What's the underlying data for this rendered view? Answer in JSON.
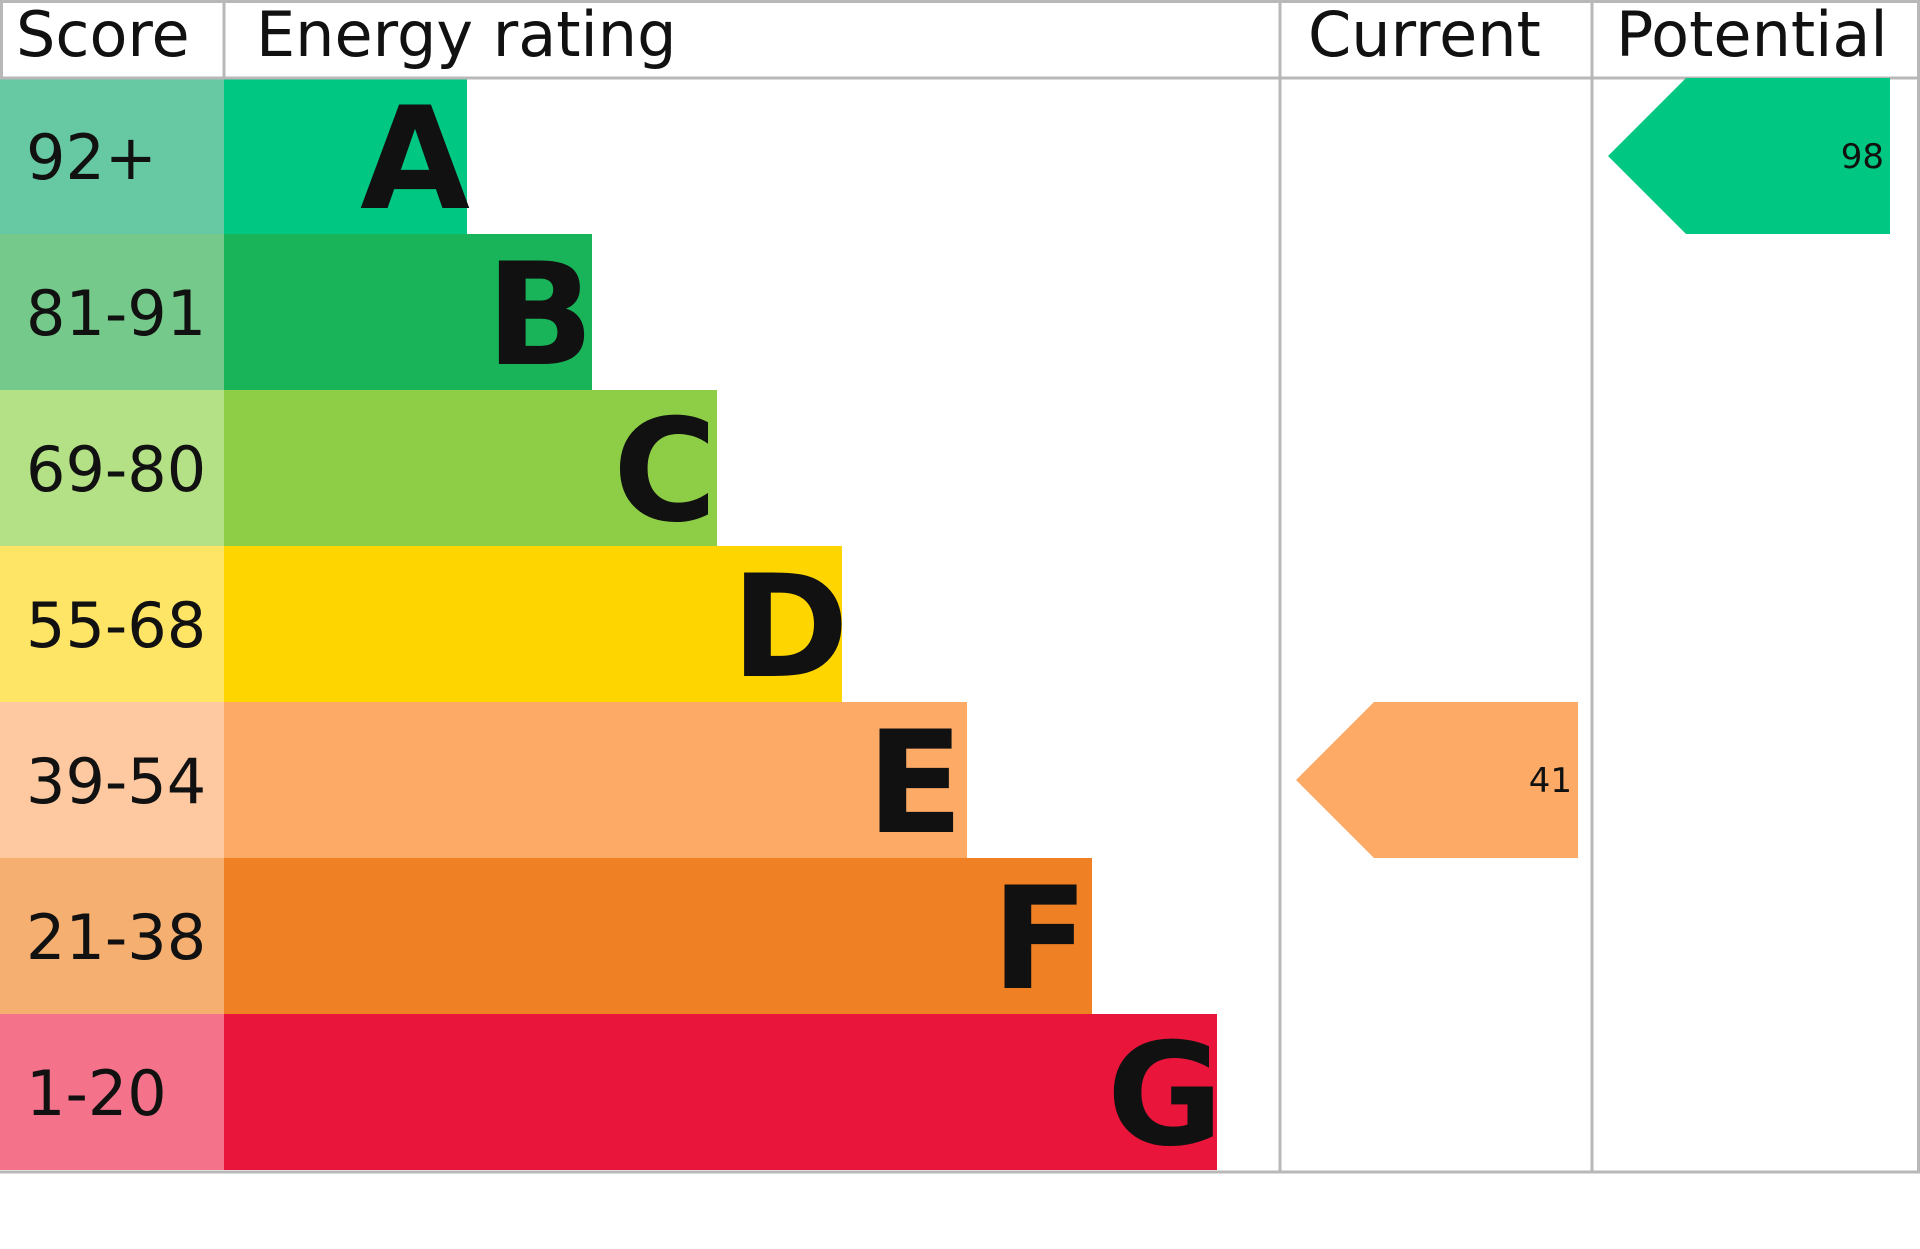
{
  "chart_data": {
    "type": "table",
    "headers": {
      "score": "Score",
      "rating": "Energy rating",
      "current": "Current",
      "potential": "Potential"
    },
    "bands": [
      {
        "letter": "A",
        "range": "92+",
        "color": "#00c781",
        "score_color": "#66c9a3"
      },
      {
        "letter": "B",
        "range": "81-91",
        "color": "#19b459",
        "score_color": "#75ca8b"
      },
      {
        "letter": "C",
        "range": "69-80",
        "color": "#8dce46",
        "score_color": "#b4e086"
      },
      {
        "letter": "D",
        "range": "55-68",
        "color": "#ffd500",
        "score_color": "#ffe565"
      },
      {
        "letter": "E",
        "range": "39-54",
        "color": "#fcaa65",
        "score_color": "#fec9a0"
      },
      {
        "letter": "F",
        "range": "21-38",
        "color": "#ef8023",
        "score_color": "#f5af70"
      },
      {
        "letter": "G",
        "range": "1-20",
        "color": "#e9153b",
        "score_color": "#f4738a"
      }
    ],
    "current": {
      "value": 41,
      "band": "E",
      "color": "#fcaa65"
    },
    "potential": {
      "value": 98,
      "band": "A",
      "color": "#00c781"
    }
  }
}
